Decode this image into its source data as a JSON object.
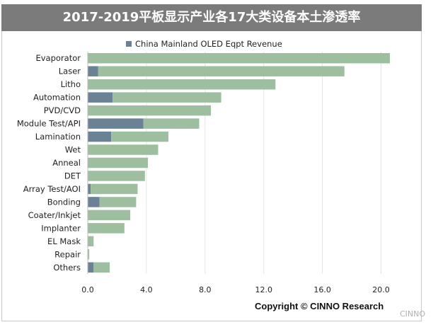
{
  "chart_data": {
    "type": "bar",
    "orientation": "horizontal",
    "stacked": true,
    "title": "2017-2019平板显示产业各17大类设备本土渗透率",
    "categories": [
      "Evaporator",
      "Laser",
      "Litho",
      "Automation",
      "PVD/CVD",
      "Module Test/API",
      "Lamination",
      "Wet",
      "Anneal",
      "DET",
      "Array Test/AOI",
      "Bonding",
      "Coater/Inkjet",
      "Implanter",
      "EL Mask",
      "Repair",
      "Others"
    ],
    "series": [
      {
        "name": "China Mainland OLED Eqpt Revenue",
        "color": "#6a8196",
        "values": [
          0.0,
          0.7,
          0.0,
          1.7,
          0.0,
          3.8,
          1.6,
          0.0,
          0.0,
          0.0,
          0.2,
          0.8,
          0.0,
          0.0,
          0.0,
          0.0,
          0.4
        ]
      },
      {
        "name": "",
        "color": "#9dbf9f",
        "values": [
          20.6,
          16.8,
          12.8,
          7.4,
          8.4,
          3.8,
          3.9,
          4.8,
          4.1,
          3.9,
          3.2,
          2.5,
          2.9,
          2.5,
          0.4,
          0.1,
          1.1
        ]
      }
    ],
    "xlim": [
      0,
      22
    ],
    "xticks": [
      0,
      4,
      8,
      12,
      16,
      20
    ],
    "tick_labels": [
      "0.0",
      "4.0",
      "8.0",
      "12.0",
      "16.0",
      "20.0"
    ],
    "xlabel": "",
    "ylabel": "",
    "grid": true,
    "legend_position": "top-center",
    "title_bar_color": "#7b7b7b",
    "grid_color": "#e3e3e3"
  },
  "footer": {
    "copyright": "Copyright © CINNO Research",
    "watermark": "CINNO"
  }
}
